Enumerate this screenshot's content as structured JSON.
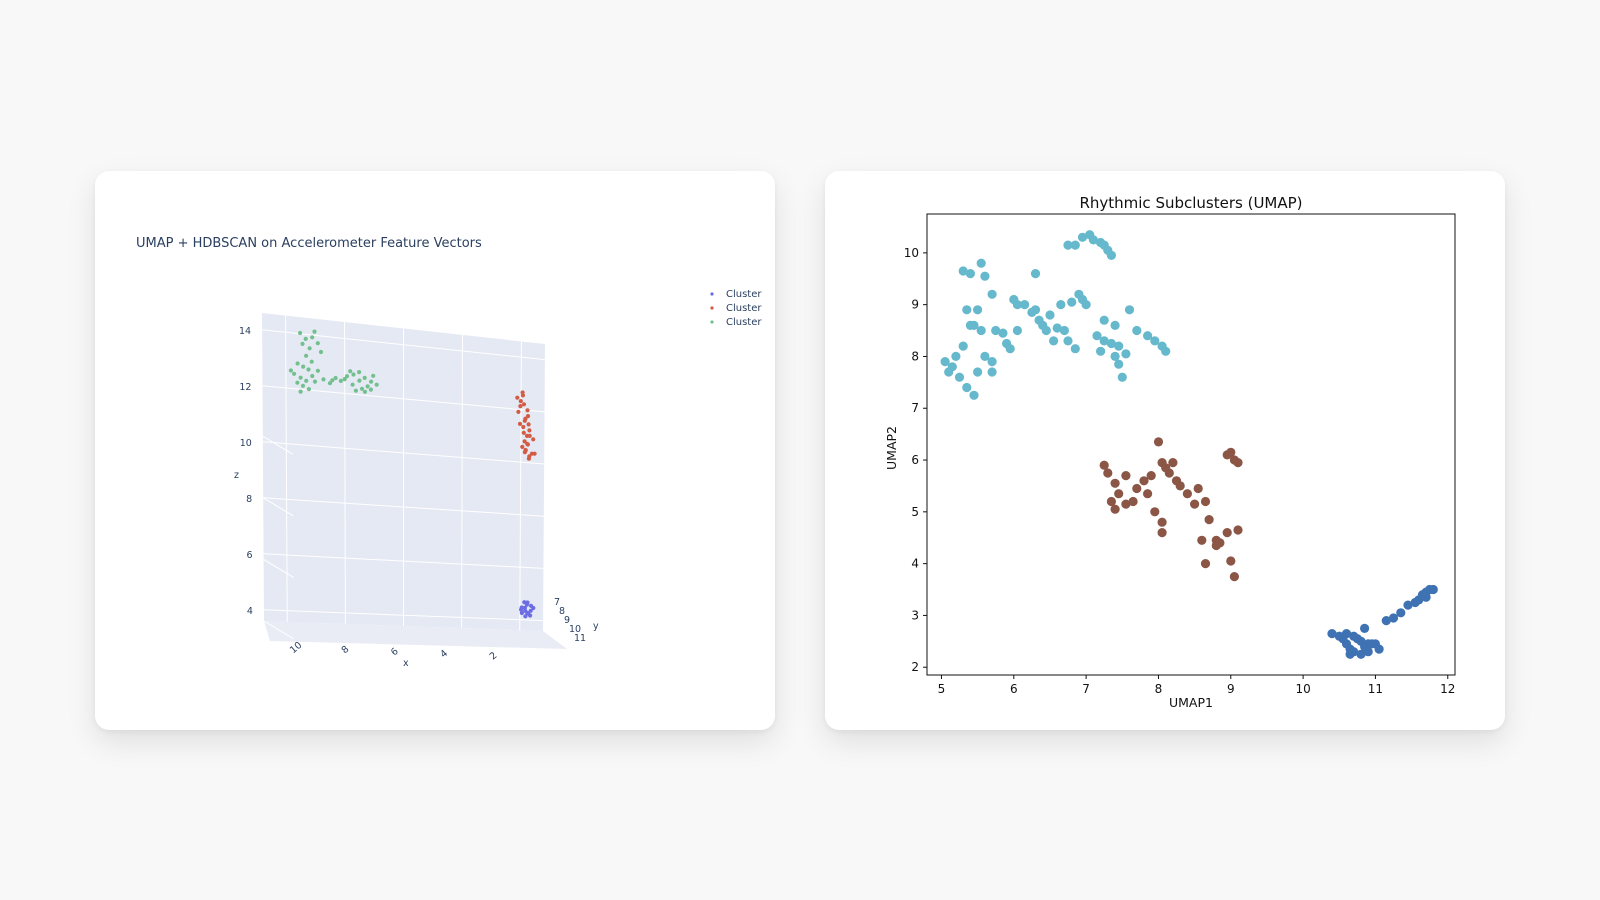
{
  "chart_data": [
    {
      "type": "scatter",
      "projection": "3d",
      "title": "UMAP + HDBSCAN on Accelerometer Feature Vectors",
      "axes": {
        "x": {
          "label": "x",
          "ticks": [
            "10",
            "8",
            "6",
            "4",
            "2"
          ]
        },
        "y": {
          "label": "y",
          "ticks": [
            "7",
            "8",
            "9",
            "10",
            "11"
          ]
        },
        "z": {
          "label": "z",
          "ticks": [
            "4",
            "6",
            "8",
            "10",
            "12",
            "14"
          ]
        }
      },
      "legend": {
        "position": "top-right",
        "entries": [
          "Cluster",
          "Cluster",
          "Cluster"
        ]
      },
      "series": [
        {
          "name": "Cluster",
          "color": "#6c6ce4",
          "points": [
            [
              2.1,
              9.3,
              4.7
            ],
            [
              2.0,
              9.1,
              4.5
            ],
            [
              1.9,
              9.4,
              4.8
            ],
            [
              2.2,
              9.0,
              4.6
            ],
            [
              2.0,
              9.2,
              4.9
            ],
            [
              2.1,
              9.5,
              4.4
            ],
            [
              1.8,
              9.2,
              4.7
            ],
            [
              2.2,
              9.3,
              4.5
            ],
            [
              2.0,
              9.0,
              4.8
            ],
            [
              1.9,
              9.3,
              4.6
            ],
            [
              2.1,
              9.1,
              4.9
            ],
            [
              2.0,
              9.4,
              4.5
            ],
            [
              2.2,
              9.2,
              4.7
            ],
            [
              1.9,
              9.1,
              4.4
            ],
            [
              2.1,
              9.4,
              4.6
            ]
          ]
        },
        {
          "name": "Cluster",
          "color": "#d35c45",
          "points": [
            [
              2.0,
              7.2,
              12.6
            ],
            [
              2.1,
              7.5,
              12.4
            ],
            [
              1.9,
              7.8,
              12.1
            ],
            [
              2.0,
              8.1,
              11.8
            ],
            [
              2.2,
              8.3,
              11.6
            ],
            [
              2.1,
              8.6,
              11.3
            ],
            [
              1.8,
              8.8,
              11.1
            ],
            [
              2.0,
              9.0,
              10.9
            ],
            [
              2.1,
              9.2,
              10.7
            ],
            [
              1.9,
              9.4,
              10.6
            ],
            [
              2.2,
              7.3,
              12.5
            ],
            [
              2.0,
              7.6,
              12.3
            ],
            [
              1.9,
              8.0,
              11.9
            ],
            [
              2.1,
              8.4,
              11.5
            ],
            [
              2.0,
              8.7,
              11.2
            ],
            [
              2.2,
              9.1,
              10.8
            ],
            [
              1.8,
              9.3,
              10.6
            ],
            [
              2.1,
              7.4,
              12.2
            ],
            [
              2.0,
              7.9,
              11.7
            ],
            [
              1.9,
              8.5,
              11.4
            ],
            [
              2.1,
              8.9,
              11.0
            ],
            [
              2.0,
              9.5,
              10.5
            ],
            [
              2.2,
              7.7,
              12.0
            ],
            [
              1.9,
              8.2,
              11.6
            ],
            [
              2.0,
              8.8,
              10.9
            ],
            [
              2.1,
              9.3,
              10.7
            ],
            [
              2.0,
              7.1,
              12.7
            ],
            [
              1.9,
              8.6,
              11.2
            ],
            [
              2.1,
              9.0,
              10.6
            ],
            [
              2.0,
              9.4,
              10.4
            ]
          ]
        },
        {
          "name": "Cluster",
          "color": "#72c08e",
          "points": [
            [
              9.6,
              7.5,
              14.1
            ],
            [
              9.4,
              7.4,
              13.9
            ],
            [
              9.2,
              7.6,
              14.0
            ],
            [
              9.0,
              7.5,
              13.8
            ],
            [
              9.5,
              7.3,
              13.7
            ],
            [
              9.3,
              7.7,
              13.6
            ],
            [
              9.1,
              7.4,
              14.2
            ],
            [
              8.9,
              7.6,
              13.5
            ],
            [
              9.4,
              7.5,
              13.3
            ],
            [
              9.2,
              7.4,
              13.1
            ],
            [
              9.7,
              7.6,
              13.0
            ],
            [
              9.5,
              7.5,
              12.9
            ],
            [
              9.3,
              7.3,
              12.8
            ],
            [
              9.8,
              7.4,
              12.6
            ],
            [
              9.6,
              7.6,
              12.5
            ],
            [
              9.4,
              7.5,
              12.4
            ],
            [
              9.9,
              7.3,
              12.7
            ],
            [
              9.7,
              7.5,
              12.3
            ],
            [
              9.5,
              7.4,
              12.2
            ],
            [
              9.2,
              7.6,
              12.6
            ],
            [
              9.0,
              7.5,
              12.8
            ],
            [
              8.8,
              7.4,
              12.5
            ],
            [
              8.6,
              7.6,
              12.4
            ],
            [
              8.4,
              7.5,
              12.6
            ],
            [
              8.2,
              7.3,
              12.5
            ],
            [
              8.0,
              7.4,
              12.7
            ],
            [
              7.8,
              7.6,
              12.8
            ],
            [
              7.6,
              7.5,
              12.9
            ],
            [
              7.4,
              7.4,
              12.7
            ],
            [
              7.2,
              7.6,
              12.6
            ],
            [
              7.0,
              7.5,
              12.5
            ],
            [
              7.8,
              7.3,
              12.4
            ],
            [
              7.5,
              7.5,
              12.3
            ],
            [
              7.3,
              7.4,
              12.4
            ],
            [
              7.6,
              7.6,
              12.6
            ],
            [
              7.9,
              7.5,
              12.9
            ],
            [
              7.1,
              7.3,
              12.8
            ],
            [
              7.4,
              7.5,
              12.2
            ],
            [
              7.7,
              7.4,
              12.2
            ],
            [
              8.1,
              7.6,
              12.6
            ],
            [
              9.1,
              7.5,
              12.4
            ],
            [
              9.3,
              7.4,
              12.1
            ],
            [
              9.6,
              7.6,
              12.0
            ],
            [
              7.2,
              7.5,
              12.3
            ],
            [
              8.5,
              7.4,
              12.5
            ]
          ]
        }
      ]
    },
    {
      "type": "scatter",
      "title": "Rhythmic Subclusters (UMAP)",
      "xlabel": "UMAP1",
      "ylabel": "UMAP2",
      "xlim": [
        4.8,
        12.1
      ],
      "ylim": [
        1.85,
        10.75
      ],
      "xticks": [
        5,
        6,
        7,
        8,
        9,
        10,
        11,
        12
      ],
      "yticks": [
        2,
        3,
        4,
        5,
        6,
        7,
        8,
        9,
        10
      ],
      "series": [
        {
          "color": "#66b8cc",
          "points": [
            [
              5.05,
              7.9
            ],
            [
              5.15,
              7.8
            ],
            [
              5.2,
              8.0
            ],
            [
              5.1,
              7.7
            ],
            [
              5.3,
              8.2
            ],
            [
              5.25,
              7.6
            ],
            [
              5.35,
              7.4
            ],
            [
              5.45,
              7.25
            ],
            [
              5.5,
              7.7
            ],
            [
              5.4,
              8.6
            ],
            [
              5.55,
              8.5
            ],
            [
              5.35,
              8.9
            ],
            [
              5.5,
              8.9
            ],
            [
              5.45,
              8.6
            ],
            [
              5.6,
              8.0
            ],
            [
              5.7,
              7.7
            ],
            [
              5.75,
              8.5
            ],
            [
              5.7,
              7.9
            ],
            [
              5.3,
              9.65
            ],
            [
              5.4,
              9.6
            ],
            [
              5.55,
              9.8
            ],
            [
              5.6,
              9.55
            ],
            [
              5.7,
              9.2
            ],
            [
              5.85,
              8.45
            ],
            [
              5.9,
              8.25
            ],
            [
              5.95,
              8.15
            ],
            [
              6.0,
              9.1
            ],
            [
              6.05,
              9.0
            ],
            [
              6.05,
              8.5
            ],
            [
              6.15,
              9.0
            ],
            [
              6.25,
              8.85
            ],
            [
              6.3,
              8.9
            ],
            [
              6.35,
              8.7
            ],
            [
              6.4,
              8.6
            ],
            [
              6.45,
              8.5
            ],
            [
              6.5,
              8.8
            ],
            [
              6.55,
              8.3
            ],
            [
              6.6,
              8.55
            ],
            [
              6.7,
              8.5
            ],
            [
              6.75,
              8.3
            ],
            [
              6.65,
              9.0
            ],
            [
              6.8,
              9.05
            ],
            [
              6.9,
              9.2
            ],
            [
              6.95,
              9.1
            ],
            [
              7.0,
              9.0
            ],
            [
              6.3,
              9.6
            ],
            [
              6.85,
              8.15
            ],
            [
              7.2,
              8.1
            ],
            [
              7.25,
              8.3
            ],
            [
              7.35,
              8.25
            ],
            [
              7.4,
              8.0
            ],
            [
              7.45,
              7.85
            ],
            [
              7.5,
              7.6
            ],
            [
              7.55,
              8.05
            ],
            [
              7.6,
              8.9
            ],
            [
              7.7,
              8.5
            ],
            [
              7.85,
              8.4
            ],
            [
              7.95,
              8.3
            ],
            [
              8.05,
              8.2
            ],
            [
              8.1,
              8.1
            ],
            [
              7.25,
              8.7
            ],
            [
              7.4,
              8.6
            ],
            [
              7.15,
              8.4
            ],
            [
              6.95,
              10.3
            ],
            [
              7.05,
              10.35
            ],
            [
              7.1,
              10.25
            ],
            [
              7.2,
              10.2
            ],
            [
              7.25,
              10.15
            ],
            [
              7.3,
              10.05
            ],
            [
              7.35,
              9.95
            ],
            [
              6.75,
              10.15
            ],
            [
              6.85,
              10.15
            ],
            [
              7.45,
              8.2
            ]
          ]
        },
        {
          "color": "#8b5646",
          "points": [
            [
              7.25,
              5.9
            ],
            [
              7.3,
              5.75
            ],
            [
              7.4,
              5.55
            ],
            [
              7.35,
              5.2
            ],
            [
              7.4,
              5.05
            ],
            [
              7.55,
              5.15
            ],
            [
              7.65,
              5.2
            ],
            [
              7.55,
              5.7
            ],
            [
              7.7,
              5.45
            ],
            [
              7.8,
              5.6
            ],
            [
              7.85,
              5.35
            ],
            [
              7.9,
              5.7
            ],
            [
              7.95,
              5.0
            ],
            [
              8.05,
              4.8
            ],
            [
              8.0,
              6.35
            ],
            [
              8.05,
              5.95
            ],
            [
              8.1,
              5.85
            ],
            [
              8.15,
              5.75
            ],
            [
              8.2,
              5.95
            ],
            [
              8.25,
              5.6
            ],
            [
              8.3,
              5.5
            ],
            [
              8.4,
              5.35
            ],
            [
              8.5,
              5.15
            ],
            [
              8.55,
              5.45
            ],
            [
              8.65,
              5.2
            ],
            [
              8.7,
              4.85
            ],
            [
              8.6,
              4.45
            ],
            [
              8.65,
              4.0
            ],
            [
              8.8,
              4.35
            ],
            [
              8.85,
              4.4
            ],
            [
              8.95,
              4.6
            ],
            [
              9.0,
              4.05
            ],
            [
              9.05,
              3.75
            ],
            [
              9.1,
              4.65
            ],
            [
              8.95,
              6.1
            ],
            [
              9.0,
              6.15
            ],
            [
              9.05,
              6.0
            ],
            [
              9.1,
              5.95
            ],
            [
              8.05,
              4.6
            ],
            [
              8.8,
              4.45
            ],
            [
              7.45,
              5.35
            ]
          ]
        },
        {
          "color": "#3f72b2",
          "points": [
            [
              10.4,
              2.65
            ],
            [
              10.5,
              2.6
            ],
            [
              10.55,
              2.55
            ],
            [
              10.6,
              2.45
            ],
            [
              10.65,
              2.35
            ],
            [
              10.7,
              2.3
            ],
            [
              10.75,
              2.55
            ],
            [
              10.8,
              2.5
            ],
            [
              10.85,
              2.4
            ],
            [
              10.9,
              2.3
            ],
            [
              10.95,
              2.45
            ],
            [
              11.0,
              2.45
            ],
            [
              11.05,
              2.35
            ],
            [
              10.85,
              2.75
            ],
            [
              10.6,
              2.65
            ],
            [
              10.7,
              2.6
            ],
            [
              10.8,
              2.25
            ],
            [
              11.15,
              2.9
            ],
            [
              11.25,
              2.95
            ],
            [
              11.35,
              3.05
            ],
            [
              11.45,
              3.2
            ],
            [
              11.55,
              3.25
            ],
            [
              11.6,
              3.3
            ],
            [
              11.65,
              3.4
            ],
            [
              11.7,
              3.45
            ],
            [
              11.75,
              3.5
            ],
            [
              11.8,
              3.5
            ],
            [
              10.65,
              2.25
            ],
            [
              10.9,
              2.45
            ],
            [
              11.7,
              3.35
            ]
          ]
        }
      ]
    }
  ]
}
